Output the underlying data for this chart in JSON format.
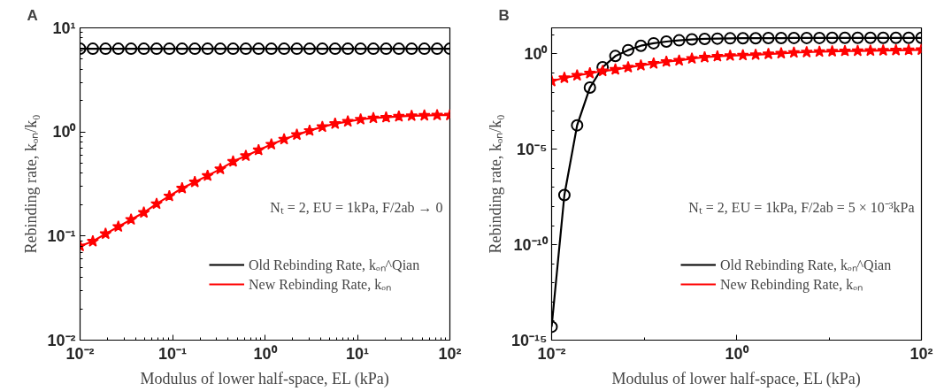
{
  "chart_data": [
    {
      "type": "line",
      "title": "A",
      "xlabel": "Modulus of lower half-space, EL (kPa)",
      "ylabel": "Rebinding rate, kₒₙ/k₀",
      "log": "xy",
      "grid": false,
      "legend": "right",
      "annotations": [
        "Nₜ = 2, EU = 1kPa, F/2ab → 0"
      ],
      "x": [
        0.01,
        0.01374,
        0.01887,
        0.02593,
        0.03562,
        0.04894,
        0.06724,
        0.09237,
        0.1269,
        0.1743,
        0.2395,
        0.329,
        0.452,
        0.621,
        0.853,
        1.172,
        1.61,
        2.212,
        3.039,
        4.175,
        5.736,
        7.88,
        10.83,
        14.87,
        20.43,
        28.07,
        38.57,
        52.98,
        72.79,
        100
      ],
      "xlim": [
        0.01,
        100
      ],
      "xticks": [
        {
          "value": 0.01,
          "label": "10⁻²"
        },
        {
          "value": 0.1,
          "label": "10⁻¹"
        },
        {
          "value": 1,
          "label": "10⁰"
        },
        {
          "value": 10,
          "label": "10¹"
        },
        {
          "value": 100,
          "label": "10²"
        }
      ],
      "ylim": [
        0.01,
        10
      ],
      "yticks": [
        {
          "value": 0.01,
          "label": "10⁻²"
        },
        {
          "value": 0.1,
          "label": "10⁻¹"
        },
        {
          "value": 1,
          "label": "10⁰"
        },
        {
          "value": 10,
          "label": "10¹"
        }
      ],
      "series": [
        {
          "name": "Old Rebinding Rate, kₒₙ^Qian",
          "color": "#000000",
          "marker": "circle",
          "values": [
            6.3,
            6.3,
            6.3,
            6.3,
            6.3,
            6.3,
            6.3,
            6.3,
            6.3,
            6.3,
            6.3,
            6.3,
            6.3,
            6.3,
            6.3,
            6.3,
            6.3,
            6.3,
            6.3,
            6.3,
            6.3,
            6.3,
            6.3,
            6.3,
            6.3,
            6.3,
            6.3,
            6.3,
            6.3,
            6.3
          ]
        },
        {
          "name": "New Rebinding Rate, kₒₙ",
          "color": "#ff0000",
          "marker": "star",
          "values": [
            0.08,
            0.089,
            0.105,
            0.123,
            0.144,
            0.168,
            0.204,
            0.242,
            0.288,
            0.33,
            0.38,
            0.44,
            0.52,
            0.59,
            0.67,
            0.76,
            0.85,
            0.94,
            1.03,
            1.12,
            1.2,
            1.26,
            1.32,
            1.36,
            1.38,
            1.41,
            1.43,
            1.44,
            1.45,
            1.45
          ]
        }
      ]
    },
    {
      "type": "line",
      "title": "B",
      "xlabel": "Modulus of lower half-space, EL (kPa)",
      "ylabel": "Rebinding rate, kₒₙ/k₀",
      "log": "xy",
      "grid": false,
      "legend": "right",
      "annotations": [
        "Nₜ = 2, EU = 1kPa, F/2ab = 5 × 10⁻³kPa"
      ],
      "x": [
        0.01,
        0.01374,
        0.01887,
        0.02593,
        0.03562,
        0.04894,
        0.06724,
        0.09237,
        0.1269,
        0.1743,
        0.2395,
        0.329,
        0.452,
        0.621,
        0.853,
        1.172,
        1.61,
        2.212,
        3.039,
        4.175,
        5.736,
        7.88,
        10.83,
        14.87,
        20.43,
        28.07,
        38.57,
        52.98,
        72.79,
        100
      ],
      "xlim": [
        0.01,
        100
      ],
      "xticks": [
        {
          "value": 0.01,
          "label": "10⁻²"
        },
        {
          "value": 1,
          "label": "10⁰"
        },
        {
          "value": 100,
          "label": "10²"
        }
      ],
      "ylim": [
        1e-15,
        23
      ],
      "yticks": [
        {
          "value": 1e-15,
          "label": "10⁻¹⁵"
        },
        {
          "value": 1e-10,
          "label": "10⁻¹⁰"
        },
        {
          "value": 1e-05,
          "label": "10⁻⁵"
        },
        {
          "value": 1,
          "label": "10⁰"
        }
      ],
      "series": [
        {
          "name": "Old Rebinding Rate, kₒₙ^Qian",
          "color": "#000000",
          "marker": "circle",
          "values": [
            5e-15,
            4e-08,
            0.00018,
            0.017,
            0.2,
            0.77,
            1.57,
            2.67,
            3.6,
            4.4,
            5.1,
            5.7,
            6.1,
            6.3,
            6.5,
            6.6,
            6.6,
            6.7,
            6.7,
            6.8,
            6.8,
            6.8,
            6.9,
            6.9,
            6.9,
            6.9,
            6.9,
            6.9,
            6.9,
            6.9
          ]
        },
        {
          "name": "New Rebinding Rate, kₒₙ",
          "color": "#ff0000",
          "marker": "star",
          "values": [
            0.037,
            0.055,
            0.074,
            0.096,
            0.126,
            0.151,
            0.198,
            0.25,
            0.31,
            0.39,
            0.45,
            0.57,
            0.66,
            0.74,
            0.8,
            0.85,
            0.89,
            0.98,
            1.06,
            1.16,
            1.22,
            1.29,
            1.35,
            1.4,
            1.43,
            1.46,
            1.5,
            1.54,
            1.58,
            1.63
          ]
        }
      ]
    }
  ]
}
